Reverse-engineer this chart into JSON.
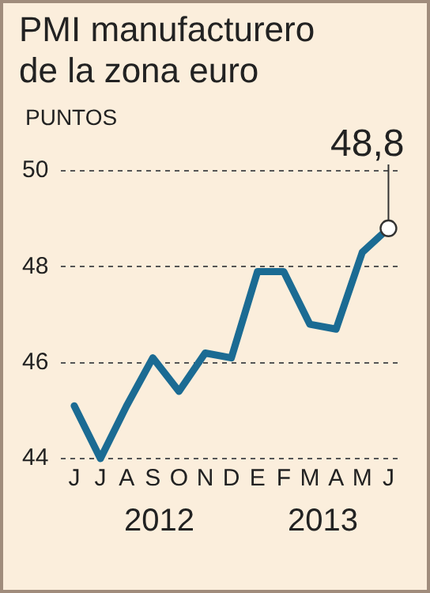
{
  "chart_data": {
    "type": "line",
    "title": "PMI manufacturero de la zona euro",
    "ylabel": "PUNTOS",
    "categories": [
      "J",
      "J",
      "A",
      "S",
      "O",
      "N",
      "D",
      "E",
      "F",
      "M",
      "A",
      "M",
      "J"
    ],
    "series": [
      {
        "color": "#1b6b93",
        "values": [
          45.1,
          44.0,
          45.1,
          46.1,
          45.4,
          46.2,
          46.1,
          47.9,
          47.9,
          46.8,
          46.7,
          48.3,
          48.8
        ],
        "value_labels": [
          null,
          null,
          null,
          null,
          null,
          null,
          null,
          null,
          null,
          null,
          null,
          null,
          "48,8"
        ]
      }
    ],
    "annotations": [
      "2012",
      "2013"
    ],
    "ylim": [
      44,
      50
    ],
    "yticks": [
      44,
      46,
      48,
      50
    ],
    "grid": "y",
    "legend": false,
    "line_style": "solid"
  }
}
